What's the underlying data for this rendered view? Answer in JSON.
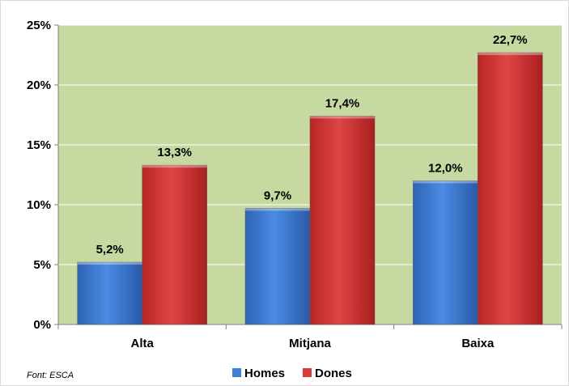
{
  "chart_data": {
    "type": "bar",
    "categories": [
      "Alta",
      "Mitjana",
      "Baixa"
    ],
    "series": [
      {
        "name": "Homes",
        "values": [
          5.2,
          9.7,
          12.0
        ],
        "labels": [
          "5,2%",
          "9,7%",
          "12,0%"
        ],
        "color": "#3f7fd9"
      },
      {
        "name": "Dones",
        "values": [
          13.3,
          17.4,
          22.7
        ],
        "labels": [
          "13,3%",
          "17,4%",
          "22,7%"
        ],
        "color": "#d93a3a"
      }
    ],
    "ylim": [
      0,
      25
    ],
    "yticks": [
      0,
      5,
      10,
      15,
      20,
      25
    ],
    "ytick_labels": [
      "0%",
      "5%",
      "10%",
      "15%",
      "20%",
      "25%"
    ],
    "grid": true,
    "plot_background": "#c5d9a0",
    "legend_position": "bottom"
  },
  "source_note": "Font: ESCA"
}
